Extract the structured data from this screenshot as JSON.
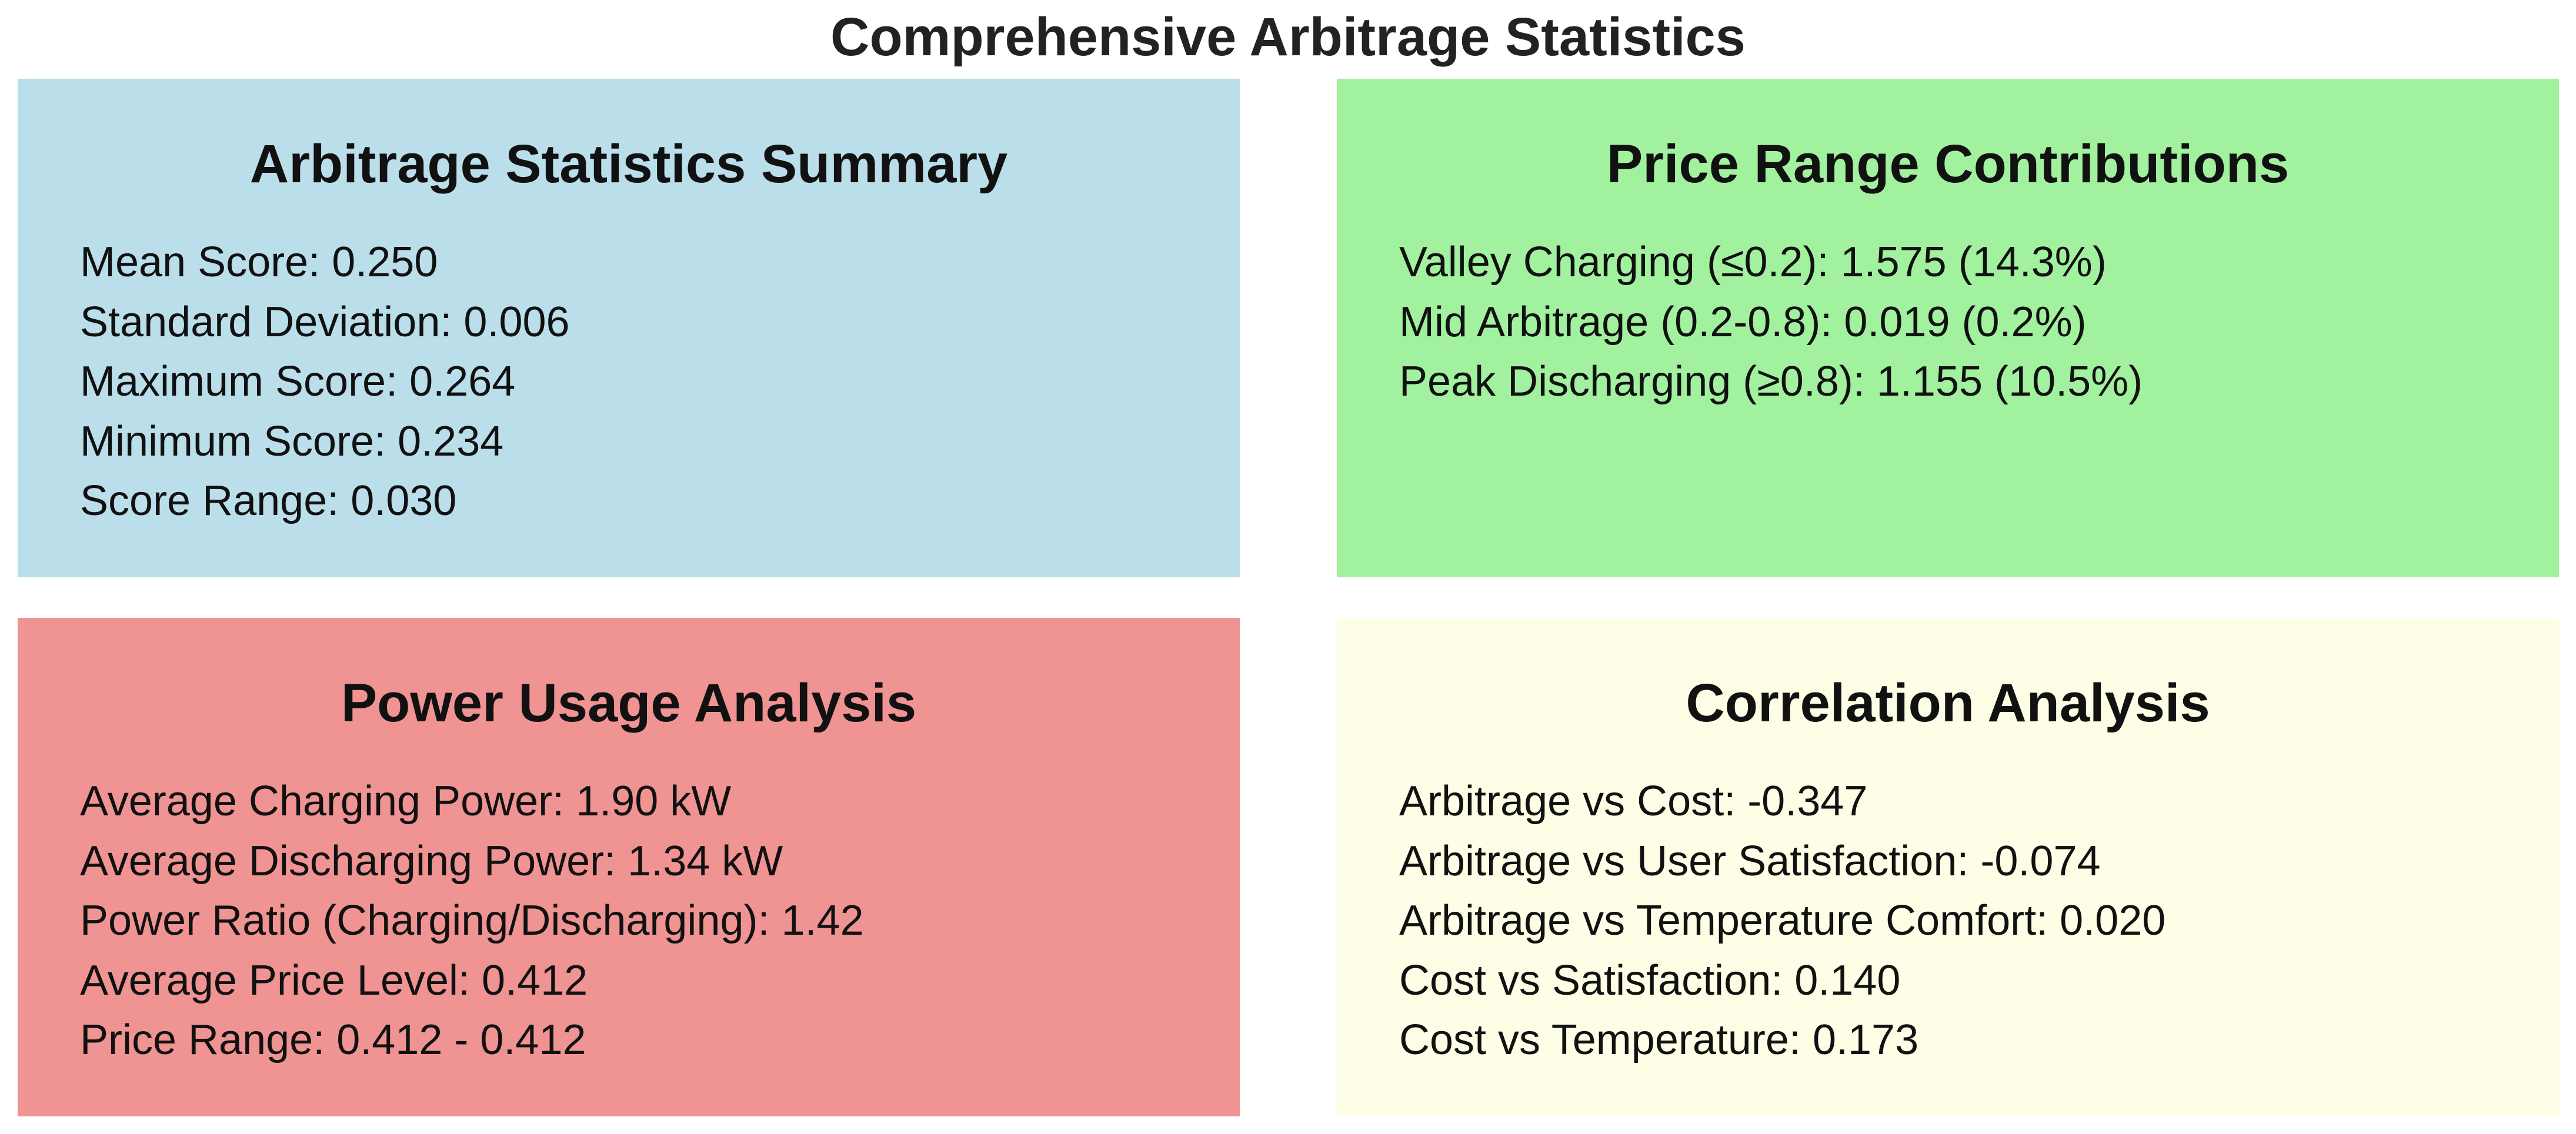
{
  "title": "Comprehensive Arbitrage Statistics",
  "panels": [
    {
      "id": "stats",
      "title": "Arbitrage Statistics Summary",
      "color": "#badeea",
      "lines": [
        "Mean Score: 0.250",
        "Standard Deviation: 0.006",
        "Maximum Score: 0.264",
        "Minimum Score: 0.234",
        "Score Range: 0.030"
      ]
    },
    {
      "id": "price",
      "title": "Price Range Contributions",
      "color": "#a2f19f",
      "lines": [
        "Valley Charging (≤0.2): 1.575 (14.3%)",
        "Mid Arbitrage (0.2-0.8): 0.019 (0.2%)",
        "Peak Discharging (≥0.8): 1.155 (10.5%)"
      ]
    },
    {
      "id": "power",
      "title": "Power Usage Analysis",
      "color": "#f09393",
      "lines": [
        "Average Charging Power: 1.90 kW",
        "Average Discharging Power: 1.34 kW",
        "Power Ratio (Charging/Discharging): 1.42",
        "Average Price Level: 0.412",
        "Price Range: 0.412 - 0.412"
      ]
    },
    {
      "id": "corr",
      "title": "Correlation Analysis",
      "color": "#fdfee5",
      "lines": [
        "Arbitrage vs Cost: -0.347",
        "Arbitrage vs User Satisfaction: -0.074",
        "Arbitrage vs Temperature Comfort: 0.020",
        "Cost vs Satisfaction: 0.140",
        "Cost vs Temperature: 0.173"
      ]
    }
  ]
}
